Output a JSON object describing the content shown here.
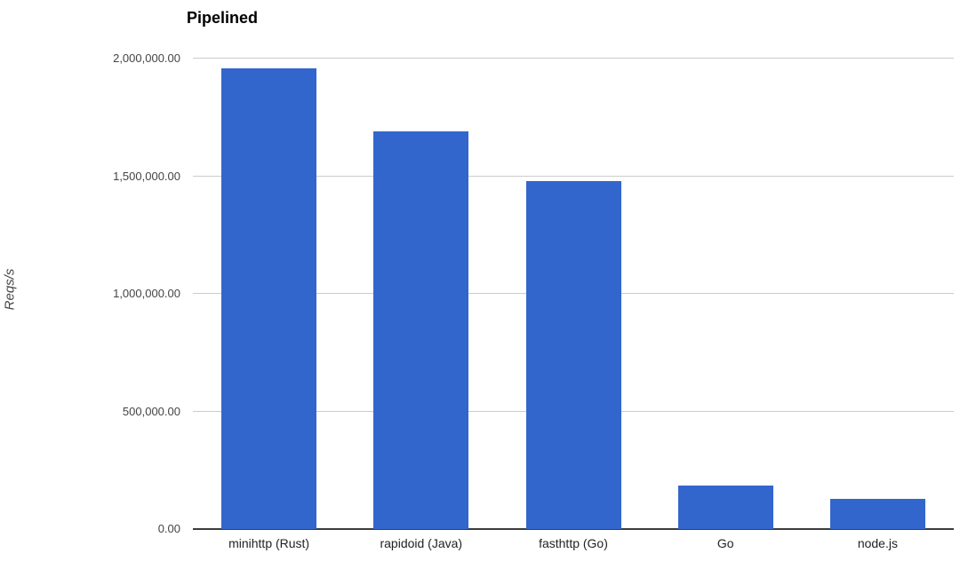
{
  "chart_data": {
    "type": "bar",
    "title": "Pipelined",
    "xlabel": "",
    "ylabel": "Reqs/s",
    "categories": [
      "minihttp (Rust)",
      "rapidoid (Java)",
      "fasthttp (Go)",
      "Go",
      "node.js"
    ],
    "values": [
      1960000,
      1690000,
      1480000,
      185000,
      128000
    ],
    "ylim": [
      0,
      2000000
    ],
    "ytick_step": 500000,
    "ytick_labels": [
      "0.00",
      "500,000.00",
      "1,000,000.00",
      "1,500,000.00",
      "2,000,000.00"
    ],
    "bar_color": "#3366cc",
    "gridline_color": "#cccccc",
    "axis_line_color": "#3c3c3c",
    "tick_label_color": "#444444",
    "category_label_color": "#222222",
    "grid": true,
    "legend": "none",
    "background": "#ffffff"
  }
}
